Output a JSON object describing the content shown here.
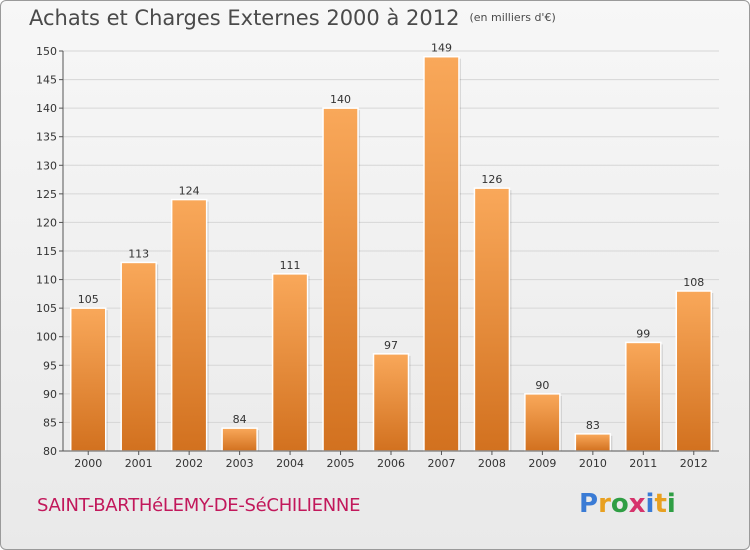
{
  "header": {
    "title": "Achats et Charges Externes 2000 à 2012",
    "subtitle": "(en milliers d'€)"
  },
  "commune": "SAINT-BARTHéLEMY-DE-SéCHILIENNE",
  "logo": {
    "text": "Proxiti",
    "letters": [
      {
        "ch": "P",
        "color": "#3a7bd5"
      },
      {
        "ch": "r",
        "color": "#e8a020"
      },
      {
        "ch": "o",
        "color": "#2f9e44"
      },
      {
        "ch": "x",
        "color": "#d6336c"
      },
      {
        "ch": "i",
        "color": "#3a7bd5"
      },
      {
        "ch": "t",
        "color": "#e8a020"
      },
      {
        "ch": "i",
        "color": "#2f9e44"
      }
    ]
  },
  "colors": {
    "bar_top": "#f9a85a",
    "bar_bottom": "#d2711f",
    "grid": "#d6d6d6",
    "axis": "#555555"
  },
  "chart_data": {
    "type": "bar",
    "title": "Achats et Charges Externes 2000 à 2012",
    "subtitle": "(en milliers d'€)",
    "categories": [
      "2000",
      "2001",
      "2002",
      "2003",
      "2004",
      "2005",
      "2006",
      "2007",
      "2008",
      "2009",
      "2010",
      "2011",
      "2012"
    ],
    "values": [
      105,
      113,
      124,
      84,
      111,
      140,
      97,
      149,
      126,
      90,
      83,
      99,
      108
    ],
    "xlabel": "",
    "ylabel": "",
    "ylim": [
      80,
      150
    ],
    "yticks": [
      80,
      85,
      90,
      95,
      100,
      105,
      110,
      115,
      120,
      125,
      130,
      135,
      140,
      145,
      150
    ],
    "grid": true,
    "legend": "none"
  }
}
